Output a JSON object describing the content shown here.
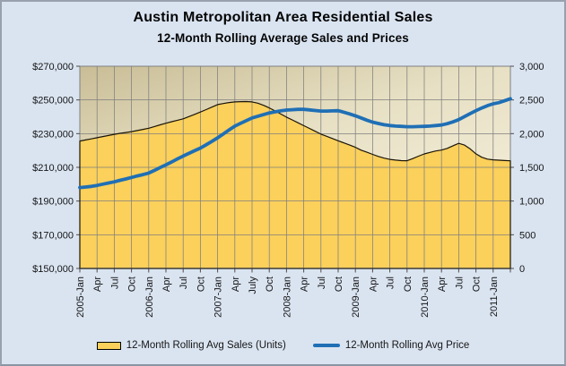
{
  "chart_data": {
    "type": "area",
    "title": "Austin Metropolitan Area Residential Sales",
    "subtitle": "12-Month Rolling Average Sales and Prices",
    "legend_position": "bottom",
    "grid": true,
    "x_tick_labels": [
      "2005-Jan",
      "Apr",
      "Jul",
      "Oct",
      "2006-Jan",
      "Apr",
      "Jul",
      "Oct",
      "2007-Jan",
      "Apr",
      "July",
      "Oct",
      "2008-Jan",
      "Apr",
      "Jul",
      "Oct",
      "2009-Jan",
      "Apr",
      "Jul",
      "Oct",
      "2010-Jan",
      "Apr",
      "Jul",
      "Oct",
      "2011-Jan"
    ],
    "x_tick_interval_months": 3,
    "left_axis": {
      "min": 150000,
      "max": 270000,
      "step": 20000,
      "labels": [
        "$270,000",
        "$250,000",
        "$230,000",
        "$210,000",
        "$190,000",
        "$170,000",
        "$150,000"
      ]
    },
    "right_axis": {
      "min": 0,
      "max": 3000,
      "step": 500,
      "labels": [
        "3,000",
        "2,500",
        "2,000",
        "1,500",
        "1,000",
        "500",
        "0"
      ]
    },
    "colors": {
      "area_fill": "#FBD05B",
      "area_outline": "#1A1408",
      "price_line": "#1F6FB5",
      "plot_bg_top": "#C9BD96",
      "plot_bg_mid": "#E7E0C4",
      "plot_bg_bottom": "#F5EFDC",
      "gridline": "#7F7F7F",
      "page_bg": "#DAE4F1"
    },
    "series": [
      {
        "name": "12-Month Rolling Avg Sales (Units)",
        "type": "area",
        "axis": "right",
        "values": [
          1890,
          1906,
          1922,
          1939,
          1956,
          1973,
          1990,
          2004,
          2017,
          2030,
          2046,
          2063,
          2080,
          2105,
          2130,
          2155,
          2177,
          2198,
          2220,
          2253,
          2286,
          2320,
          2356,
          2393,
          2430,
          2446,
          2461,
          2470,
          2474,
          2476,
          2471,
          2452,
          2420,
          2382,
          2337,
          2291,
          2245,
          2203,
          2161,
          2119,
          2077,
          2035,
          1993,
          1960,
          1927,
          1894,
          1862,
          1830,
          1798,
          1755,
          1724,
          1693,
          1662,
          1637,
          1618,
          1607,
          1600,
          1598,
          1630,
          1666,
          1699,
          1722,
          1743,
          1756,
          1782,
          1820,
          1856,
          1830,
          1774,
          1700,
          1650,
          1622,
          1612,
          1606,
          1601,
          1597
        ]
      },
      {
        "name": "12-Month Rolling Avg Price",
        "type": "line",
        "axis": "left",
        "values": [
          198000,
          198300,
          198700,
          199300,
          200000,
          200700,
          201400,
          202300,
          203100,
          204000,
          204900,
          205700,
          206600,
          208200,
          209900,
          211500,
          213200,
          215000,
          216700,
          218300,
          219900,
          221400,
          223400,
          225400,
          227500,
          229800,
          232200,
          234500,
          236100,
          237700,
          239300,
          240300,
          241300,
          242300,
          242900,
          243500,
          244000,
          244200,
          244400,
          244400,
          244100,
          243700,
          243400,
          243400,
          243500,
          243600,
          242700,
          241700,
          240600,
          239300,
          238000,
          236800,
          236000,
          235300,
          234800,
          234500,
          234300,
          234100,
          234100,
          234200,
          234300,
          234500,
          234800,
          235100,
          235900,
          237000,
          238300,
          240100,
          241900,
          243600,
          245200,
          246600,
          247700,
          248400,
          249500,
          250700
        ]
      }
    ],
    "start_month": "2005-Jan",
    "end_month": "2011-Apr"
  }
}
